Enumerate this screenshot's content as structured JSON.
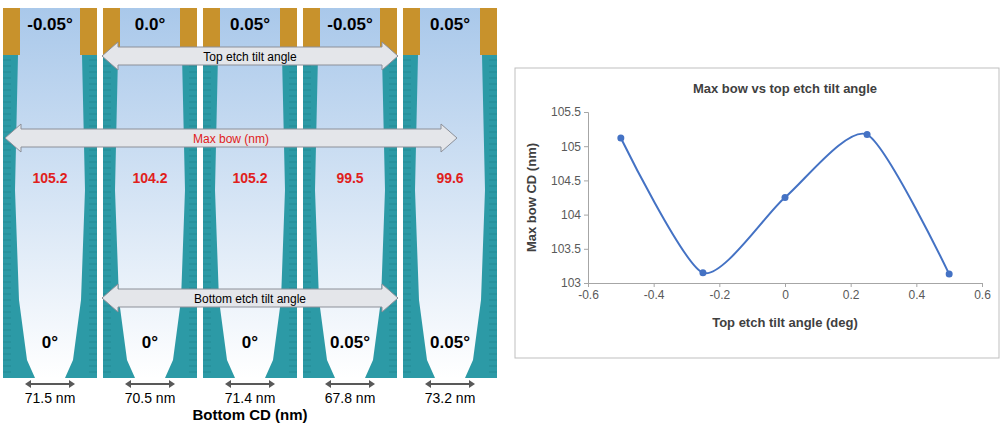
{
  "chart_data": {
    "type": "line",
    "title": "Max bow vs top etch tilt angle",
    "x_label": "Top etch tilt angle (deg)",
    "y_label": "Max bow CD (nm)",
    "x": [
      -0.5,
      -0.25,
      0,
      0.25,
      0.5
    ],
    "values": [
      105.12,
      103.15,
      104.25,
      105.17,
      103.13
    ],
    "color": "#4472c4",
    "marker": "circle",
    "line_style": "smooth",
    "xlim": [
      -0.6,
      0.6
    ],
    "xticks": [
      -0.6,
      -0.4,
      -0.2,
      0,
      0.2,
      0.4,
      0.6
    ],
    "ylim": [
      103,
      105.5
    ],
    "yticks": [
      103,
      103.5,
      104,
      104.5,
      105,
      105.5
    ],
    "grid": false
  },
  "figure": {
    "labels": {
      "top_tilt": "Top etch tilt angle",
      "max_bow": "Max bow (nm)",
      "bottom_tilt": "Bottom etch tilt angle",
      "bottom_cd": "Bottom CD (nm)"
    },
    "panels": [
      {
        "top_tilt": "-0.05°",
        "max_bow": 105.2,
        "bottom_tilt": "0°",
        "bottom_cd": "71.5 nm"
      },
      {
        "top_tilt": "0.0°",
        "max_bow": 104.2,
        "bottom_tilt": "0°",
        "bottom_cd": "70.5 nm"
      },
      {
        "top_tilt": "0.05°",
        "max_bow": 105.2,
        "bottom_tilt": "0°",
        "bottom_cd": "71.4 nm"
      },
      {
        "top_tilt": "-0.05°",
        "max_bow": 99.5,
        "bottom_tilt": "0.05°",
        "bottom_cd": "67.8 nm"
      },
      {
        "top_tilt": "0.05°",
        "max_bow": 99.6,
        "bottom_tilt": "0.05°",
        "bottom_cd": "73.2 nm"
      }
    ]
  }
}
